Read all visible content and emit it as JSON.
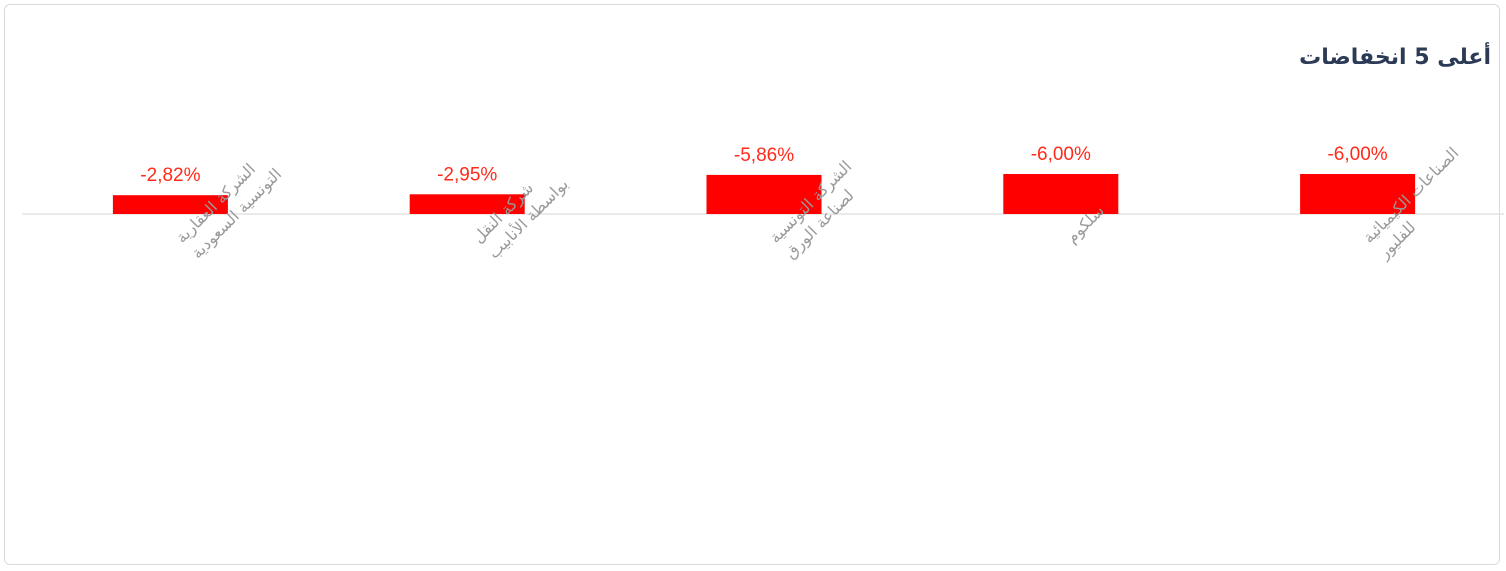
{
  "title": "أعلى 5 انخفاضات",
  "colors": {
    "bar": "#ff0000",
    "value_label": "#ff2a1a",
    "category_label": "#9a9a9a",
    "baseline": "#e3e3e3",
    "title": "#2b3a55"
  },
  "chart_data": {
    "type": "bar",
    "title": "أعلى 5 انخفاضات",
    "categories": [
      [
        "الشركة العقارية",
        "التونسية السعودية"
      ],
      [
        "شركة النقل",
        "بواسطة الأنابيب"
      ],
      [
        "الشركة التونسية",
        "لصناعة الورق"
      ],
      [
        "سلكوم"
      ],
      [
        "الصناعات الكيميائية",
        "للفليور"
      ]
    ],
    "values": [
      -2.82,
      -2.95,
      -5.86,
      -6.0,
      -6.0
    ],
    "value_labels": [
      "-2,82%",
      "-2,95%",
      "-5,86%",
      "-6,00%",
      "-6,00%"
    ],
    "xlabel": "",
    "ylabel": "",
    "grid": false,
    "legend": "none"
  }
}
